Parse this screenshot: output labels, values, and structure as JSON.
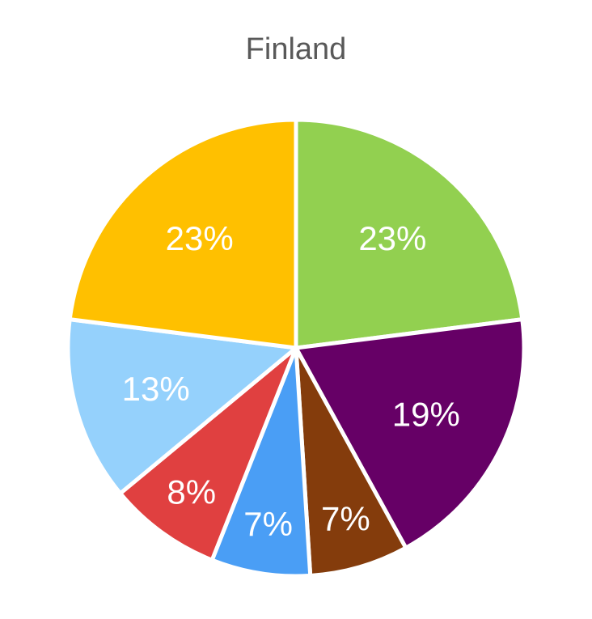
{
  "chart_data": {
    "type": "pie",
    "title": "Finland",
    "slices": [
      {
        "value": 23,
        "label": "23%",
        "color": "#92D050"
      },
      {
        "value": 19,
        "label": "19%",
        "color": "#660066"
      },
      {
        "value": 7,
        "label": "7%",
        "color": "#843C0C"
      },
      {
        "value": 7,
        "label": "7%",
        "color": "#4A9EF5"
      },
      {
        "value": 8,
        "label": "8%",
        "color": "#E04040"
      },
      {
        "value": 13,
        "label": "13%",
        "color": "#95D1FC"
      },
      {
        "value": 23,
        "label": "23%",
        "color": "#FFC000"
      }
    ],
    "start_angle_deg": 0,
    "direction": "clockwise",
    "legend": "none"
  }
}
